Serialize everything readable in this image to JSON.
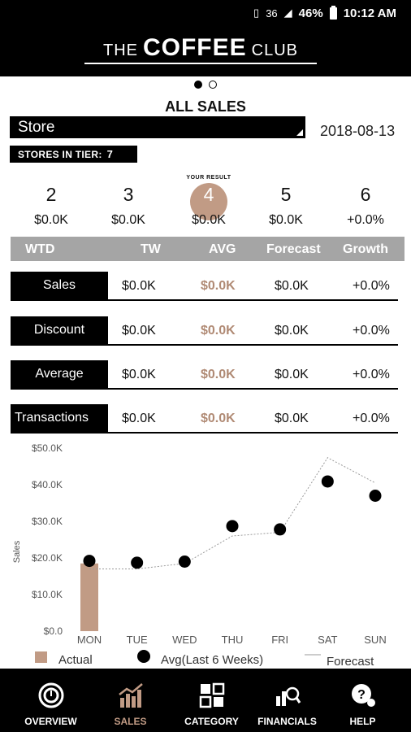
{
  "status_bar": {
    "battery": "46%",
    "time": "10:12 AM",
    "network": "36"
  },
  "brand": {
    "the": "THE",
    "coffee": "COFFEE",
    "club": "CLUB"
  },
  "page": {
    "title": "ALL SALES",
    "date": "2018-08-13"
  },
  "store": {
    "selected": "Store",
    "tier_label": "STORES IN TIER:",
    "tier_count": "7"
  },
  "result_label": "YOUR RESULT",
  "ranks": [
    {
      "rank": "2",
      "value": "$0.0K"
    },
    {
      "rank": "3",
      "value": "$0.0K"
    },
    {
      "rank": "4",
      "value": "$0.0K"
    },
    {
      "rank": "5",
      "value": "$0.0K"
    },
    {
      "rank": "6",
      "value": "+0.0%"
    }
  ],
  "table": {
    "headers": [
      "WTD",
      "TW",
      "AVG",
      "Forecast",
      "Growth"
    ],
    "rows": [
      {
        "label": "Sales",
        "tw": "$0.0K",
        "avg": "$0.0K",
        "forecast": "$0.0K",
        "growth": "+0.0%"
      },
      {
        "label": "Discount",
        "tw": "$0.0K",
        "avg": "$0.0K",
        "forecast": "$0.0K",
        "growth": "+0.0%"
      },
      {
        "label": "Average",
        "tw": "$0.0K",
        "avg": "$0.0K",
        "forecast": "$0.0K",
        "growth": "+0.0%"
      },
      {
        "label": "Transactions",
        "tw": "$0.0K",
        "avg": "$0.0K",
        "forecast": "$0.0K",
        "growth": "+0.0%"
      }
    ]
  },
  "chart_data": {
    "type": "bar",
    "categories": [
      "MON",
      "TUE",
      "WED",
      "THU",
      "FRI",
      "SAT",
      "SUN"
    ],
    "ylabel": "Sales",
    "ylim": [
      0,
      50
    ],
    "yticks": [
      "$0.0",
      "$10.0K",
      "$20.0K",
      "$30.0K",
      "$40.0K",
      "$50.0K"
    ],
    "series": [
      {
        "name": "Actual",
        "type": "bar",
        "values": [
          18.5,
          null,
          null,
          null,
          null,
          null,
          null
        ],
        "color": "#c19b85"
      },
      {
        "name": "Avg(Last 6 Weeks)",
        "type": "scatter",
        "values": [
          19.2,
          18.7,
          19.0,
          28.7,
          27.8,
          40.9,
          37.0
        ],
        "color": "#000000"
      },
      {
        "name": "Forecast",
        "type": "line",
        "values": [
          17.0,
          17.0,
          18.5,
          26.0,
          27.0,
          47.4,
          40.5
        ],
        "color": "#9a9a9a"
      }
    ]
  },
  "nav": [
    {
      "label": "OVERVIEW",
      "icon": "overview-icon",
      "active": false
    },
    {
      "label": "SALES",
      "icon": "sales-icon",
      "active": true
    },
    {
      "label": "CATEGORY",
      "icon": "category-icon",
      "active": false
    },
    {
      "label": "FINANCIALS",
      "icon": "financials-icon",
      "active": false
    },
    {
      "label": "HELP",
      "icon": "help-icon",
      "active": false
    }
  ],
  "colors": {
    "accent": "#c19b85",
    "header_gray": "#a5a5a5",
    "bar_black": "#000000"
  }
}
